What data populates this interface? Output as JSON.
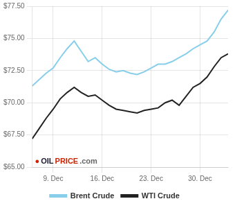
{
  "chart_data": {
    "type": "line",
    "x": [
      0,
      1,
      2,
      3,
      4,
      5,
      6,
      7,
      8,
      9,
      10,
      11,
      12,
      13,
      14,
      15,
      16,
      17,
      18,
      19,
      20,
      21,
      22,
      23,
      24,
      25,
      26,
      27,
      28
    ],
    "series": [
      {
        "name": "Brent Crude",
        "color": "#87CEEB",
        "values": [
          71.3,
          71.8,
          72.3,
          72.7,
          73.5,
          74.2,
          74.8,
          74.0,
          73.2,
          73.5,
          73.0,
          72.6,
          72.4,
          72.5,
          72.3,
          72.2,
          72.4,
          72.7,
          73.0,
          73.0,
          73.2,
          73.5,
          73.8,
          74.2,
          74.5,
          74.8,
          75.5,
          76.5,
          77.2
        ]
      },
      {
        "name": "WTI Crude",
        "color": "#222222",
        "values": [
          67.2,
          68.0,
          68.8,
          69.5,
          70.3,
          70.8,
          71.2,
          70.8,
          70.5,
          70.6,
          70.2,
          69.8,
          69.5,
          69.4,
          69.3,
          69.2,
          69.4,
          69.5,
          69.6,
          70.0,
          70.2,
          69.8,
          70.5,
          71.2,
          71.5,
          72.0,
          72.8,
          73.5,
          73.8
        ]
      }
    ],
    "xlim": [
      0,
      28
    ],
    "xticks": [
      {
        "value": 3,
        "label": "9. Dec"
      },
      {
        "value": 10,
        "label": "16. Dec"
      },
      {
        "value": 17,
        "label": "23. Dec"
      },
      {
        "value": 24,
        "label": "30. Dec"
      }
    ],
    "ylim": [
      65.0,
      77.5
    ],
    "yticks": [
      {
        "value": 65.0,
        "label": "$65.00"
      },
      {
        "value": 67.5,
        "label": "$67.50"
      },
      {
        "value": 70.0,
        "label": "$70.00"
      },
      {
        "value": 72.5,
        "label": "$72.50"
      },
      {
        "value": 75.0,
        "label": "$75.00"
      },
      {
        "value": 77.5,
        "label": "$77.50"
      }
    ],
    "grid": true,
    "legend": "bottom",
    "annotations": [
      {
        "text": "●",
        "color": "#cc2200"
      },
      {
        "text": "OIL",
        "color": "#1a1a2e"
      },
      {
        "text": "PRICE",
        "color": "#cc2200"
      },
      {
        "text": ".com",
        "color": "#666666"
      }
    ]
  }
}
